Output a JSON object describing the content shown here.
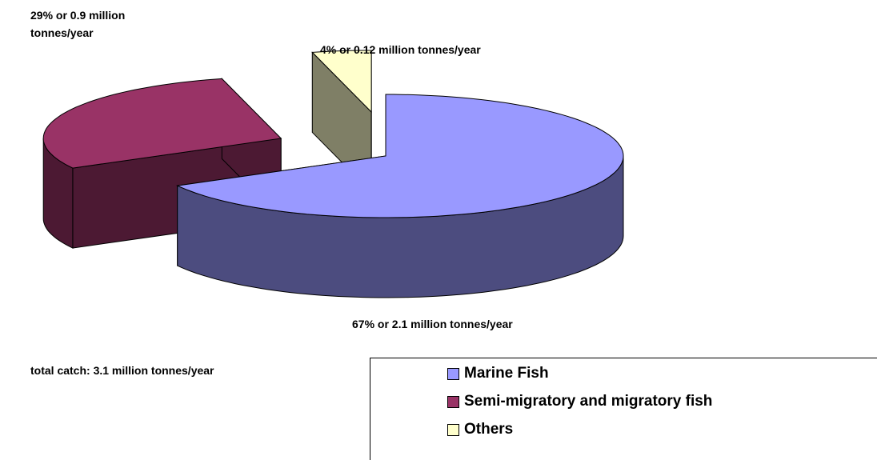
{
  "chart_data": {
    "type": "pie3d",
    "categories": [
      "Marine Fish",
      "Semi-migratory and migratory fish",
      "Others"
    ],
    "values": [
      67,
      29,
      4
    ],
    "value_labels": [
      "67% or 2.1 million tonnes/year",
      "29% or 0.9 million tonnes/year",
      "4% or 0.12 million tonnes/year"
    ],
    "colors": [
      "#9999ff",
      "#993366",
      "#ffffcc"
    ],
    "annotation": "total catch:  3.1 million tonnes/year",
    "legend": "bottom-right"
  }
}
